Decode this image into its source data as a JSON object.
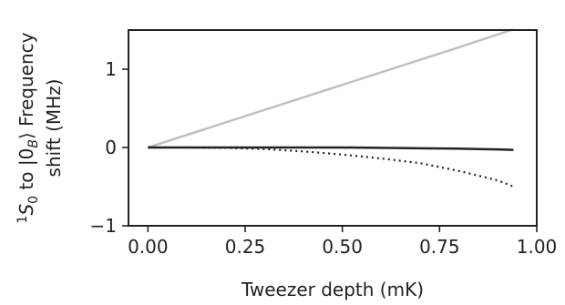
{
  "chart_data": {
    "type": "line",
    "title": "",
    "xlabel": "Tweezer depth (mK)",
    "ylabel_line1_parts": {
      "sup": "1",
      "s": "S",
      "sub0": "0",
      "mid": " to |0",
      "subB": "B",
      "rest": "⟩ Frequency"
    },
    "ylabel_line2": "shift (MHz)",
    "xlim": [
      -0.05,
      1.0
    ],
    "ylim": [
      -1.0,
      1.5
    ],
    "xticks": [
      0.0,
      0.25,
      0.5,
      0.75,
      1.0
    ],
    "xtick_labels": [
      "0.00",
      "0.25",
      "0.50",
      "0.75",
      "1.00"
    ],
    "yticks": [
      -1,
      0,
      1
    ],
    "ytick_labels": [
      "−1",
      "0",
      "1"
    ],
    "grid": false,
    "series": [
      {
        "style": "solid",
        "color": "#c0c0c0",
        "x": [
          0.0,
          0.2,
          0.4,
          0.6,
          0.8,
          0.94
        ],
        "y": [
          0.0,
          0.32,
          0.64,
          0.96,
          1.28,
          1.51
        ]
      },
      {
        "style": "solid",
        "color": "#222222",
        "x": [
          0.0,
          0.1,
          0.2,
          0.3,
          0.4,
          0.5,
          0.6,
          0.7,
          0.8,
          0.9,
          0.94
        ],
        "y": [
          0.0,
          0.0,
          0.0,
          0.0,
          0.0,
          0.0,
          -0.005,
          -0.01,
          -0.015,
          -0.025,
          -0.03
        ]
      },
      {
        "style": "dotted",
        "color": "#222222",
        "x": [
          0.0,
          0.1,
          0.2,
          0.3,
          0.4,
          0.5,
          0.6,
          0.7,
          0.8,
          0.9,
          0.94
        ],
        "y": [
          0.0,
          0.0,
          -0.005,
          -0.02,
          -0.05,
          -0.09,
          -0.14,
          -0.2,
          -0.3,
          -0.42,
          -0.5
        ]
      }
    ]
  }
}
